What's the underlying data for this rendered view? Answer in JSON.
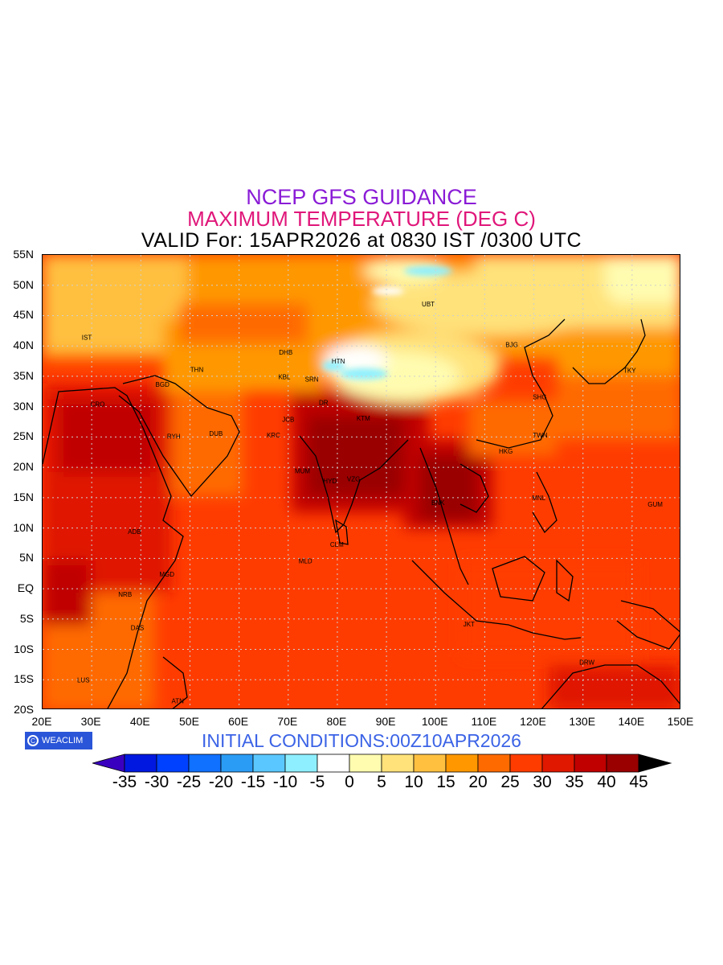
{
  "title": {
    "line1": "NCEP GFS GUIDANCE",
    "line1_color": "#8a1bd6",
    "line2": "MAXIMUM TEMPERATURE (DEG C)",
    "line2_color": "#e0177a",
    "line3": "VALID For: 15APR2026 at 0830 IST /0300 UTC"
  },
  "axes": {
    "x_labels": [
      "20E",
      "30E",
      "40E",
      "50E",
      "60E",
      "70E",
      "80E",
      "90E",
      "100E",
      "110E",
      "120E",
      "130E",
      "140E",
      "150E"
    ],
    "y_labels": [
      "55N",
      "50N",
      "45N",
      "40N",
      "35N",
      "30N",
      "25N",
      "20N",
      "15N",
      "10N",
      "5N",
      "EQ",
      "5S",
      "10S",
      "15S",
      "20S"
    ]
  },
  "map": {
    "lon_range": [
      20,
      150
    ],
    "lat_range": [
      -20,
      55
    ],
    "grid": true,
    "stations": [
      {
        "code": "UBT",
        "lon": 98.5,
        "lat": 46.5
      },
      {
        "code": "BJG",
        "lon": 115.5,
        "lat": 39.8
      },
      {
        "code": "TKY",
        "lon": 139.5,
        "lat": 35.6
      },
      {
        "code": "SHG",
        "lon": 121.2,
        "lat": 31.2
      },
      {
        "code": "TWN",
        "lon": 121.3,
        "lat": 24.9
      },
      {
        "code": "HKG",
        "lon": 114.3,
        "lat": 22.3
      },
      {
        "code": "MNL",
        "lon": 121,
        "lat": 14.6
      },
      {
        "code": "GUM",
        "lon": 144.7,
        "lat": 13.5
      },
      {
        "code": "DHB",
        "lon": 69.5,
        "lat": 38.6
      },
      {
        "code": "HTN",
        "lon": 80.2,
        "lat": 37.1
      },
      {
        "code": "KBL",
        "lon": 69.2,
        "lat": 34.5
      },
      {
        "code": "SRN",
        "lon": 74.8,
        "lat": 34.1
      },
      {
        "code": "DR",
        "lon": 77.2,
        "lat": 30.3
      },
      {
        "code": "IST",
        "lon": 29,
        "lat": 41
      },
      {
        "code": "THN",
        "lon": 51.4,
        "lat": 35.7
      },
      {
        "code": "BGD",
        "lon": 44.4,
        "lat": 33.3
      },
      {
        "code": "CRO",
        "lon": 31.2,
        "lat": 30
      },
      {
        "code": "RYH",
        "lon": 46.7,
        "lat": 24.7
      },
      {
        "code": "DUB",
        "lon": 55.3,
        "lat": 25.2
      },
      {
        "code": "KRC",
        "lon": 67,
        "lat": 24.9
      },
      {
        "code": "JCB",
        "lon": 70,
        "lat": 27.5
      },
      {
        "code": "KTM",
        "lon": 85.3,
        "lat": 27.7
      },
      {
        "code": "MUM",
        "lon": 72.9,
        "lat": 19
      },
      {
        "code": "HYD",
        "lon": 78.5,
        "lat": 17.4
      },
      {
        "code": "VZG",
        "lon": 83.3,
        "lat": 17.7
      },
      {
        "code": "CLM",
        "lon": 79.9,
        "lat": 6.9
      },
      {
        "code": "MLD",
        "lon": 73.5,
        "lat": 4.2
      },
      {
        "code": "BNK",
        "lon": 100.5,
        "lat": 13.8
      },
      {
        "code": "ADB",
        "lon": 38.7,
        "lat": 9
      },
      {
        "code": "MGD",
        "lon": 45.3,
        "lat": 2
      },
      {
        "code": "NRB",
        "lon": 36.8,
        "lat": -1.3
      },
      {
        "code": "DAS",
        "lon": 39.3,
        "lat": -6.8
      },
      {
        "code": "LUS",
        "lon": 28.3,
        "lat": -15.4
      },
      {
        "code": "ATN",
        "lon": 47.5,
        "lat": -18.9
      },
      {
        "code": "JKT",
        "lon": 106.8,
        "lat": -6.2
      },
      {
        "code": "DRW",
        "lon": 130.8,
        "lat": -12.5
      }
    ]
  },
  "footer": {
    "logo_text": "WEACLIM",
    "logo_mark": "C",
    "initial_conditions": "INITIAL CONDITIONS:00Z10APR2026",
    "initial_color": "#3b63e6"
  },
  "colorbar": {
    "levels": [
      "-35",
      "-30",
      "-25",
      "-20",
      "-15",
      "-10",
      "-5",
      "0",
      "5",
      "10",
      "15",
      "20",
      "25",
      "30",
      "35",
      "40",
      "45"
    ],
    "colors": [
      "#3a00c0",
      "#0018e0",
      "#0040ff",
      "#1070ff",
      "#2a9cf5",
      "#5ac8ff",
      "#8ef0ff",
      "#ffffff",
      "#fffcb0",
      "#ffe27a",
      "#ffc040",
      "#ff9800",
      "#ff6a00",
      "#ff3c00",
      "#e01800",
      "#c00000",
      "#9a0000",
      "#000000"
    ]
  }
}
